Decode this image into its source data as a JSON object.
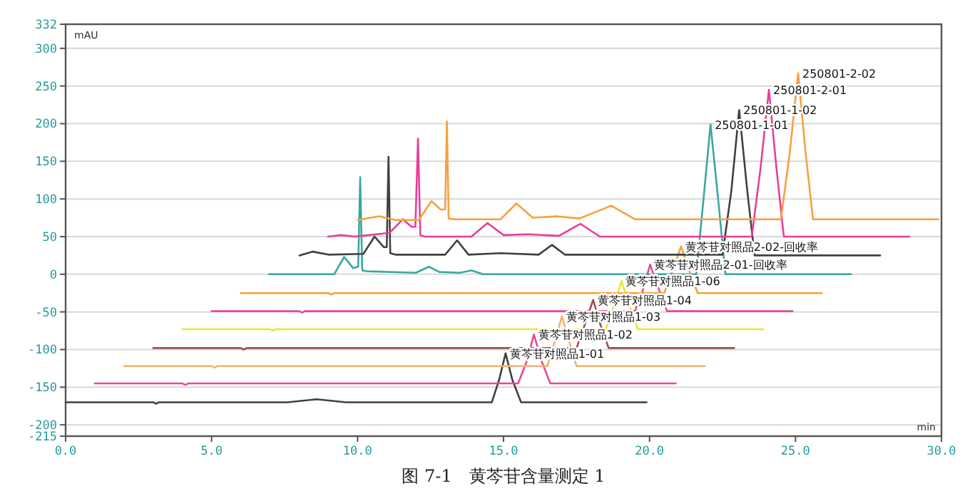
{
  "chart_data": {
    "type": "line",
    "title": "图 7-1　黄芩苷含量测定 1",
    "xlabel": "min",
    "ylabel": "mAU",
    "xlim": [
      0,
      30
    ],
    "ylim": [
      -215,
      332
    ],
    "xticks": [
      {
        "value": 0,
        "label": "0.0"
      },
      {
        "value": 5,
        "label": "5.0"
      },
      {
        "value": 10,
        "label": "10.0"
      },
      {
        "value": 15,
        "label": "15.0"
      },
      {
        "value": 20,
        "label": "20.0"
      },
      {
        "value": 25,
        "label": "25.0"
      },
      {
        "value": 30,
        "label": "30.0"
      }
    ],
    "yticks": [
      -215,
      -200,
      -150,
      -100,
      -50,
      0,
      50,
      100,
      150,
      200,
      250,
      300,
      332
    ],
    "grid": "y",
    "marker": "none",
    "line_style": "solid",
    "series": [
      {
        "name": "黄芩苷对照品1-01",
        "color": "#404040",
        "x": [
          0,
          3.0,
          3.1,
          3.2,
          7.6,
          8.6,
          9.6,
          14.6,
          14.85,
          15.07,
          15.3,
          15.6,
          19.9
        ],
        "values": [
          -170,
          -170,
          -172,
          -170,
          -170,
          -166,
          -170,
          -170,
          -140,
          -105,
          -140,
          -170,
          -170
        ]
      },
      {
        "name": "黄芩苷对照品1-02",
        "color": "#e8489a",
        "x": [
          1.0,
          4.0,
          4.1,
          4.2,
          15.5,
          15.8,
          16.04,
          16.3,
          16.6,
          20.9
        ],
        "values": [
          -145,
          -145,
          -147,
          -145,
          -145,
          -115,
          -80,
          -115,
          -145,
          -145
        ]
      },
      {
        "name": "黄芩苷对照品1-03",
        "color": "#f5b070",
        "x": [
          2.0,
          5.0,
          5.1,
          5.2,
          16.5,
          16.75,
          17.0,
          17.25,
          17.5,
          21.9
        ],
        "values": [
          -122,
          -122,
          -124,
          -122,
          -122,
          -90,
          -56,
          -90,
          -122,
          -122
        ]
      },
      {
        "name": "黄芩苷对照品1-04",
        "color": "#a05050",
        "x": [
          3.0,
          6.0,
          6.1,
          6.2,
          17.5,
          17.8,
          18.07,
          18.3,
          18.6,
          22.9
        ],
        "values": [
          -98,
          -98,
          -100,
          -98,
          -98,
          -65,
          -34,
          -65,
          -98,
          -98
        ]
      },
      {
        "name": "黄芩苷对照品1-06",
        "color": "#e8e830",
        "x": [
          4.0,
          7.0,
          7.1,
          7.2,
          18.5,
          18.8,
          19.04,
          19.3,
          19.6,
          23.9
        ],
        "values": [
          -73,
          -73,
          -75,
          -73,
          -73,
          -40,
          -9,
          -40,
          -73,
          -73
        ]
      },
      {
        "name": "黄芩苷对照品2-01-回收率",
        "color": "#e8489a",
        "x": [
          5.0,
          8.0,
          8.1,
          8.2,
          19.5,
          19.8,
          20.02,
          20.3,
          20.6,
          24.9
        ],
        "values": [
          -49,
          -49,
          -51,
          -49,
          -49,
          -18,
          13,
          -18,
          -49,
          -49
        ]
      },
      {
        "name": "黄芩苷对照品2-02-回收率",
        "color": "#f5a040",
        "x": [
          6.0,
          9.0,
          9.1,
          9.2,
          20.5,
          20.8,
          21.08,
          21.35,
          21.65,
          25.9
        ],
        "values": [
          -25,
          -25,
          -27,
          -25,
          -25,
          6,
          37,
          6,
          -25,
          -25
        ]
      },
      {
        "name": "250801-1-01",
        "color": "#3aa8a0",
        "x": [
          6.97,
          9.2,
          9.54,
          9.85,
          10.02,
          10.09,
          10.16,
          10.3,
          12.0,
          12.44,
          12.8,
          13.5,
          13.9,
          14.3,
          21.6,
          21.85,
          22.09,
          22.35,
          22.6,
          26.9
        ],
        "values": [
          0,
          0,
          23,
          8,
          10,
          129,
          5,
          4,
          2,
          10,
          3,
          2,
          5,
          0,
          0,
          100,
          199,
          100,
          0,
          0
        ]
      },
      {
        "name": "250801-1-02",
        "color": "#404040",
        "x": [
          8.01,
          8.47,
          9.0,
          10.2,
          10.58,
          10.9,
          11.0,
          11.06,
          11.12,
          11.3,
          13.0,
          13.41,
          13.8,
          14.9,
          16.2,
          16.66,
          17.1,
          22.5,
          22.8,
          23.07,
          23.35,
          23.6,
          27.9
        ],
        "values": [
          25,
          30,
          26,
          27,
          50,
          36,
          36,
          156,
          28,
          26,
          26,
          45,
          26,
          28,
          26,
          39,
          26,
          26,
          110,
          218,
          110,
          25,
          25
        ]
      },
      {
        "name": "250801-2-01",
        "color": "#e83e9a",
        "x": [
          8.99,
          9.44,
          9.9,
          11.1,
          11.55,
          11.85,
          11.98,
          12.07,
          12.15,
          12.3,
          13.9,
          14.45,
          15.0,
          15.85,
          16.9,
          17.63,
          18.3,
          23.5,
          23.8,
          24.09,
          24.35,
          24.6,
          28.9
        ],
        "values": [
          50,
          52,
          50,
          55,
          73,
          63,
          63,
          180,
          52,
          50,
          50,
          68,
          52,
          53,
          51,
          67,
          50,
          50,
          140,
          245,
          140,
          50,
          50
        ]
      },
      {
        "name": "250801-2-02",
        "color": "#f7a040",
        "x": [
          10.01,
          10.74,
          11.3,
          12.1,
          12.53,
          12.85,
          13.0,
          13.06,
          13.12,
          13.3,
          14.9,
          15.44,
          16.0,
          16.82,
          17.6,
          18.69,
          19.5,
          24.5,
          24.8,
          25.09,
          25.35,
          25.6,
          29.9
        ],
        "values": [
          72,
          77,
          72,
          72,
          97,
          86,
          86,
          203,
          74,
          73,
          73,
          94,
          75,
          77,
          74,
          91,
          73,
          73,
          160,
          267,
          160,
          73,
          73
        ]
      }
    ]
  }
}
